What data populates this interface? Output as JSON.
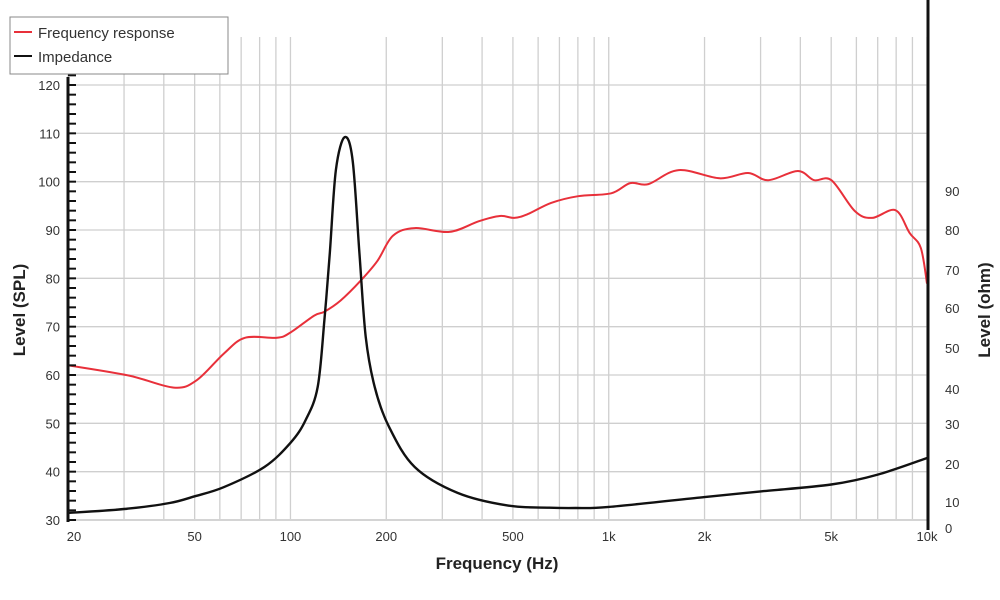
{
  "chart_data": {
    "type": "line",
    "title": "",
    "xlabel": "Frequency (Hz)",
    "ylabel": "Level (SPL)",
    "y2label": "Level (ohm)",
    "xscale": "log",
    "xlim": [
      20,
      10000
    ],
    "ylim": [
      30,
      120
    ],
    "y2lim": [
      0,
      110
    ],
    "grid": true,
    "legend_position": "top-left",
    "x_ticks": [
      {
        "value": 20,
        "label": "20"
      },
      {
        "value": 50,
        "label": "50"
      },
      {
        "value": 100,
        "label": "100"
      },
      {
        "value": 200,
        "label": "200"
      },
      {
        "value": 500,
        "label": "500"
      },
      {
        "value": 1000,
        "label": "1k"
      },
      {
        "value": 2000,
        "label": "2k"
      },
      {
        "value": 5000,
        "label": "5k"
      },
      {
        "value": 10000,
        "label": "10k"
      }
    ],
    "y_ticks": [
      30,
      40,
      50,
      60,
      70,
      80,
      90,
      100,
      110,
      120
    ],
    "y2_ticks": [
      0,
      10,
      20,
      30,
      40,
      50,
      60,
      70,
      80,
      90
    ],
    "series": [
      {
        "name": "Frequency response",
        "axis": "left",
        "color": "#e8303a",
        "points": [
          [
            20,
            62
          ],
          [
            31,
            59.9
          ],
          [
            43,
            57.4
          ],
          [
            50.7,
            58.9
          ],
          [
            61.7,
            64.4
          ],
          [
            71.9,
            67.7
          ],
          [
            90.7,
            67.7
          ],
          [
            100,
            68.8
          ],
          [
            118.7,
            72.3
          ],
          [
            127.8,
            73.1
          ],
          [
            143.6,
            75.4
          ],
          [
            166,
            79.5
          ],
          [
            187.6,
            83.6
          ],
          [
            209.8,
            88.8
          ],
          [
            245.6,
            90.4
          ],
          [
            315.8,
            89.6
          ],
          [
            390,
            91.8
          ],
          [
            455,
            92.9
          ],
          [
            505,
            92.5
          ],
          [
            557,
            93.3
          ],
          [
            659,
            95.6
          ],
          [
            802,
            97
          ],
          [
            1018,
            97.6
          ],
          [
            1168,
            99.7
          ],
          [
            1332,
            99.5
          ],
          [
            1659,
            102.4
          ],
          [
            2232,
            100.7
          ],
          [
            2740,
            101.8
          ],
          [
            3173,
            100.3
          ],
          [
            3926,
            102.2
          ],
          [
            4421,
            100.3
          ],
          [
            5009,
            100.3
          ],
          [
            5935,
            93.9
          ],
          [
            6720,
            92.5
          ],
          [
            7958,
            94.1
          ],
          [
            8814,
            89.4
          ],
          [
            9560,
            86.3
          ],
          [
            10000,
            78.9
          ]
        ]
      },
      {
        "name": "Impedance",
        "axis": "right",
        "color": "#111111",
        "points": [
          [
            20,
            5.8
          ],
          [
            30,
            7.3
          ],
          [
            41.7,
            9.6
          ],
          [
            50,
            11.5
          ],
          [
            61.7,
            13.9
          ],
          [
            82.8,
            19.2
          ],
          [
            100,
            25.3
          ],
          [
            111.6,
            31.1
          ],
          [
            121.8,
            40.5
          ],
          [
            127.8,
            57
          ],
          [
            132.9,
            74.2
          ],
          [
            138.9,
            95.4
          ],
          [
            148,
            103.8
          ],
          [
            156.8,
            97.9
          ],
          [
            164.7,
            74.3
          ],
          [
            172.4,
            52.8
          ],
          [
            183.9,
            40.5
          ],
          [
            204,
            29.3
          ],
          [
            245.6,
            19.2
          ],
          [
            335,
            12.4
          ],
          [
            483,
            8.6
          ],
          [
            650,
            7.8
          ],
          [
            784,
            7.7
          ],
          [
            1000,
            8.1
          ],
          [
            2000,
            11.3
          ],
          [
            3000,
            12.8
          ],
          [
            5000,
            14.6
          ],
          [
            7000,
            17.2
          ],
          [
            10000,
            21.5
          ]
        ]
      }
    ]
  }
}
